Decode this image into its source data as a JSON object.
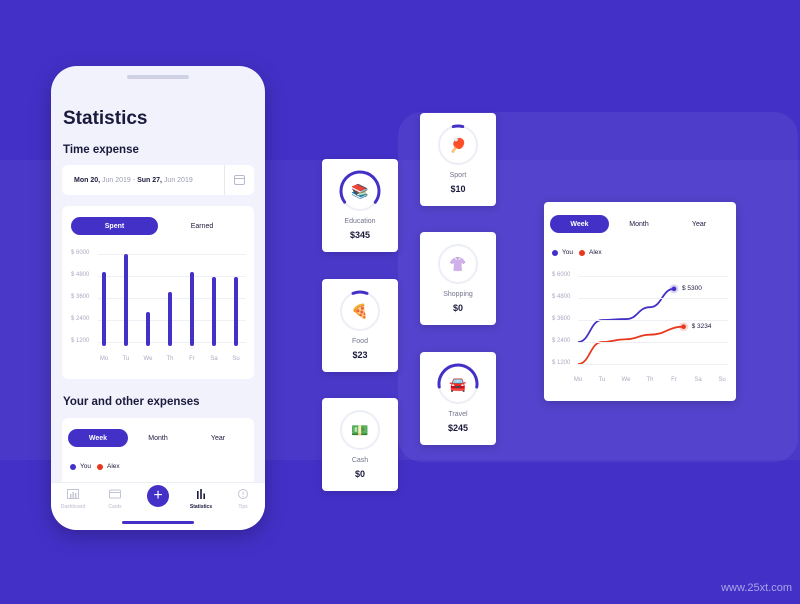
{
  "phone": {
    "title": "Statistics",
    "time_expense_title": "Time expense",
    "date_range": {
      "start_day": "Mon 20,",
      "start_rest": "Jun 2019",
      "separator": " - ",
      "end_day": "Sun 27,",
      "end_rest": "Jun 2019"
    },
    "toggle": {
      "spent": "Spent",
      "earned": "Earned",
      "selected": "Spent"
    },
    "other_expenses_title": "Your and other expenses",
    "period_tabs": [
      "Week",
      "Month",
      "Year"
    ],
    "legend": [
      {
        "label": "You",
        "color": "#4330c7"
      },
      {
        "label": "Alex",
        "color": "#e8381e"
      }
    ],
    "tabbar": [
      {
        "label": "Dashboard",
        "icon": "bar-chart-icon"
      },
      {
        "label": "Cards",
        "icon": "card-icon"
      },
      {
        "label": "",
        "icon": "plus-icon"
      },
      {
        "label": "Statistics",
        "icon": "statistics-icon"
      },
      {
        "label": "Tips",
        "icon": "info-icon"
      }
    ]
  },
  "chart_data": [
    {
      "type": "bar",
      "title": "",
      "categories": [
        "Mo",
        "Tu",
        "We",
        "Th",
        "Fr",
        "Sa",
        "Su"
      ],
      "values": [
        4800,
        6000,
        2200,
        3500,
        4800,
        4500,
        4500
      ],
      "yticks": [
        "$ 6000",
        "$ 4800",
        "$ 3600",
        "$ 2400",
        "$ 1200"
      ],
      "ylim": [
        0,
        6000
      ],
      "color": "#4330c7"
    },
    {
      "type": "line",
      "title": "",
      "categories": [
        "Mo",
        "Tu",
        "We",
        "Th",
        "Fr",
        "Sa",
        "Su"
      ],
      "yticks": [
        "$ 6000",
        "$ 4800",
        "$ 3600",
        "$ 2400",
        "$ 1200"
      ],
      "ylim": [
        0,
        6000
      ],
      "series": [
        {
          "name": "You",
          "color": "#4330c7",
          "x": [
            0,
            1,
            2,
            3,
            4
          ],
          "values": [
            2400,
            3600,
            3650,
            4300,
            5300
          ],
          "end_label": "$ 5300"
        },
        {
          "name": "Alex",
          "color": "#e8381e",
          "x": [
            0,
            1,
            2,
            3,
            4.4
          ],
          "values": [
            1200,
            2400,
            2550,
            2800,
            3234
          ],
          "end_label": "$ 3234"
        }
      ],
      "legend_position": "top-left"
    }
  ],
  "categories": [
    {
      "name": "Education",
      "amount": "$345",
      "emoji": "📚",
      "progress": 0.7
    },
    {
      "name": "Food",
      "amount": "$23",
      "emoji": "🍕",
      "progress": 0.12
    },
    {
      "name": "Cash",
      "amount": "$0",
      "emoji": "💵",
      "progress": 0
    },
    {
      "name": "Sport",
      "amount": "$10",
      "emoji": "🏓",
      "progress": 0.08
    },
    {
      "name": "Shopping",
      "amount": "$0",
      "emoji": "👚",
      "progress": 0
    },
    {
      "name": "Travel",
      "amount": "$245",
      "emoji": "🚘",
      "progress": 0.55
    }
  ],
  "line_card": {
    "tabs": [
      "Week",
      "Month",
      "Year"
    ],
    "selected": "Week",
    "legend": [
      {
        "label": "You",
        "color": "#4330c7"
      },
      {
        "label": "Alex",
        "color": "#e8381e"
      }
    ]
  },
  "watermark": "www.25xt.com",
  "colors": {
    "accent": "#4330c7",
    "alex": "#e8381e",
    "background": "#4330c7"
  }
}
